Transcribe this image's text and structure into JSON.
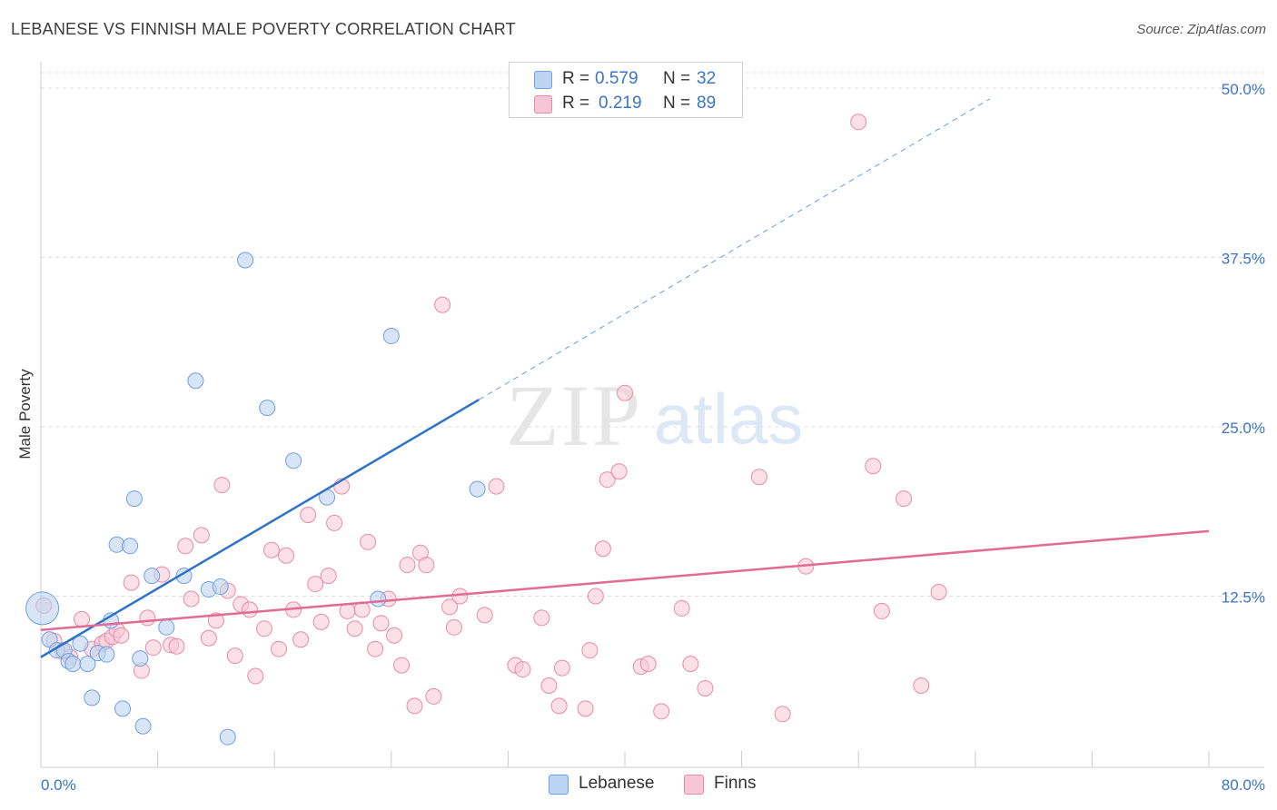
{
  "title": "LEBANESE VS FINNISH MALE POVERTY CORRELATION CHART",
  "source": "Source: ZipAtlas.com",
  "colors": {
    "lebanese": "#6f9fe0",
    "lebanese_fill": "#bcd3f2",
    "lebanese_line": "#2e72c9",
    "finns": "#e88aa8",
    "finns_fill": "#f7c6d6",
    "finns_line": "#e06b93",
    "axis_text": "#3a74c4",
    "grid": "#dddddd"
  },
  "legend": {
    "rows": [
      {
        "r_label": "R =",
        "r_value": "0.579",
        "n_label": "N =",
        "n_value": "32"
      },
      {
        "r_label": "R =",
        "r_value": "0.219",
        "n_label": "N =",
        "n_value": "89"
      }
    ],
    "bottom": [
      "Lebanese",
      "Finns"
    ]
  },
  "chart_data": {
    "type": "scatter",
    "title": "LEBANESE VS FINNISH MALE POVERTY CORRELATION CHART",
    "xlabel": "",
    "ylabel": "Male Poverty",
    "xlim": [
      0,
      80
    ],
    "ylim": [
      0,
      50
    ],
    "x_tick_labels": [
      "0.0%",
      "80.0%"
    ],
    "y_ticks": [
      12.5,
      25.0,
      37.5,
      50.0
    ],
    "y_tick_labels": [
      "12.5%",
      "25.0%",
      "37.5%",
      "50.0%"
    ],
    "grid": true,
    "legend_position": "top-center",
    "watermark": "ZIPatlas",
    "series": [
      {
        "name": "Lebanese",
        "r": 0.579,
        "n": 32,
        "trend": {
          "x0": 0,
          "y0": 8.0,
          "x1": 30.0,
          "y1": 27.0,
          "dashed_to_x": 65.0,
          "dashed_to_y": 49.2
        },
        "points": [
          [
            0.1,
            11.6
          ],
          [
            0.6,
            9.3
          ],
          [
            1.1,
            8.5
          ],
          [
            1.6,
            8.5
          ],
          [
            1.9,
            7.7
          ],
          [
            2.2,
            7.5
          ],
          [
            2.7,
            9.0
          ],
          [
            3.2,
            7.5
          ],
          [
            3.5,
            5.0
          ],
          [
            3.9,
            8.3
          ],
          [
            4.5,
            8.2
          ],
          [
            4.8,
            10.7
          ],
          [
            5.2,
            16.3
          ],
          [
            5.6,
            4.2
          ],
          [
            6.1,
            16.2
          ],
          [
            6.4,
            19.7
          ],
          [
            6.8,
            7.9
          ],
          [
            7.0,
            2.9
          ],
          [
            7.6,
            14.0
          ],
          [
            8.6,
            10.2
          ],
          [
            9.8,
            14.0
          ],
          [
            10.6,
            28.4
          ],
          [
            11.5,
            13.0
          ],
          [
            12.3,
            13.2
          ],
          [
            12.8,
            2.1
          ],
          [
            14.0,
            37.3
          ],
          [
            15.5,
            26.4
          ],
          [
            17.3,
            22.5
          ],
          [
            19.6,
            19.8
          ],
          [
            23.1,
            12.3
          ],
          [
            24.0,
            31.7
          ],
          [
            29.9,
            20.4
          ]
        ]
      },
      {
        "name": "Finns",
        "r": 0.219,
        "n": 89,
        "trend": {
          "x0": 0,
          "y0": 10.0,
          "x1": 80.0,
          "y1": 17.3
        },
        "points": [
          [
            0.2,
            11.8
          ],
          [
            0.9,
            9.2
          ],
          [
            1.5,
            8.4
          ],
          [
            2.0,
            8.0
          ],
          [
            2.8,
            10.8
          ],
          [
            3.5,
            8.6
          ],
          [
            4.2,
            9.0
          ],
          [
            4.5,
            9.2
          ],
          [
            4.9,
            9.5
          ],
          [
            5.2,
            10.0
          ],
          [
            5.5,
            9.6
          ],
          [
            6.2,
            13.5
          ],
          [
            6.9,
            7.0
          ],
          [
            7.3,
            10.9
          ],
          [
            7.7,
            8.7
          ],
          [
            8.3,
            14.1
          ],
          [
            8.9,
            8.9
          ],
          [
            9.3,
            8.8
          ],
          [
            9.9,
            16.2
          ],
          [
            10.3,
            12.3
          ],
          [
            11.0,
            17.0
          ],
          [
            11.5,
            9.4
          ],
          [
            12.0,
            10.7
          ],
          [
            12.4,
            20.7
          ],
          [
            12.8,
            12.9
          ],
          [
            13.3,
            8.1
          ],
          [
            13.7,
            11.9
          ],
          [
            14.3,
            11.5
          ],
          [
            14.7,
            6.6
          ],
          [
            15.3,
            10.1
          ],
          [
            15.8,
            15.9
          ],
          [
            16.3,
            8.6
          ],
          [
            16.8,
            15.5
          ],
          [
            17.3,
            11.5
          ],
          [
            17.8,
            9.3
          ],
          [
            18.3,
            18.5
          ],
          [
            18.8,
            13.4
          ],
          [
            19.2,
            10.6
          ],
          [
            19.7,
            14.0
          ],
          [
            20.1,
            17.9
          ],
          [
            20.6,
            20.6
          ],
          [
            21.0,
            11.4
          ],
          [
            21.5,
            10.1
          ],
          [
            22.0,
            11.5
          ],
          [
            22.4,
            16.5
          ],
          [
            22.9,
            8.6
          ],
          [
            23.3,
            10.5
          ],
          [
            23.8,
            12.3
          ],
          [
            24.2,
            9.6
          ],
          [
            24.7,
            7.4
          ],
          [
            25.1,
            14.8
          ],
          [
            25.6,
            4.4
          ],
          [
            26.0,
            15.7
          ],
          [
            26.4,
            14.8
          ],
          [
            26.9,
            5.1
          ],
          [
            27.5,
            34.0
          ],
          [
            28.0,
            11.7
          ],
          [
            28.3,
            10.2
          ],
          [
            28.7,
            12.5
          ],
          [
            30.4,
            11.1
          ],
          [
            31.2,
            20.6
          ],
          [
            32.5,
            7.4
          ],
          [
            33.0,
            7.1
          ],
          [
            34.3,
            10.9
          ],
          [
            34.8,
            5.9
          ],
          [
            35.5,
            4.4
          ],
          [
            35.7,
            7.2
          ],
          [
            37.3,
            4.2
          ],
          [
            37.6,
            8.5
          ],
          [
            38.0,
            12.5
          ],
          [
            38.5,
            16.0
          ],
          [
            38.8,
            21.1
          ],
          [
            39.6,
            21.7
          ],
          [
            40.0,
            27.5
          ],
          [
            41.1,
            7.3
          ],
          [
            41.6,
            7.5
          ],
          [
            42.5,
            4.0
          ],
          [
            43.9,
            11.6
          ],
          [
            44.5,
            7.5
          ],
          [
            45.5,
            5.7
          ],
          [
            49.2,
            21.3
          ],
          [
            50.8,
            3.8
          ],
          [
            52.4,
            14.7
          ],
          [
            56.0,
            47.5
          ],
          [
            57.0,
            22.1
          ],
          [
            57.6,
            11.4
          ],
          [
            59.1,
            19.7
          ],
          [
            60.3,
            5.9
          ],
          [
            61.5,
            12.8
          ]
        ]
      }
    ]
  }
}
